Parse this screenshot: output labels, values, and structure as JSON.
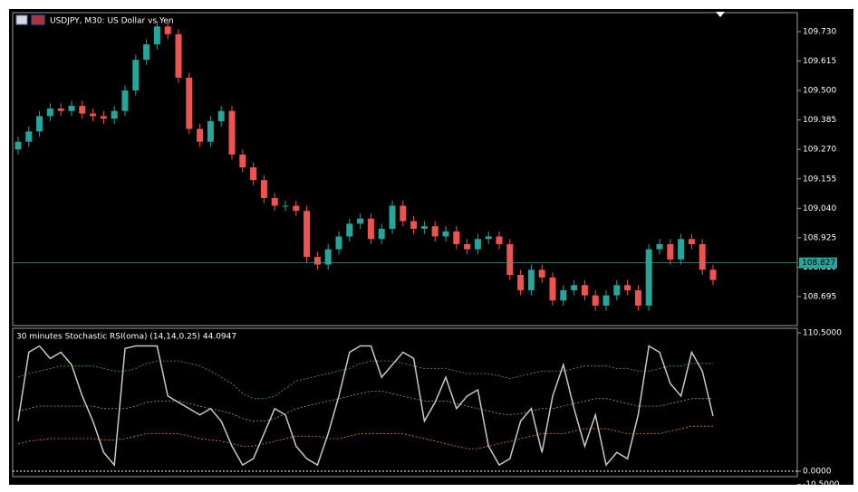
{
  "chart_data": [
    {
      "type": "candlestick",
      "title": "USDJPY, M30:  US Dollar vs Yen",
      "open": [
        109.27,
        109.3,
        109.34,
        109.4,
        109.43,
        109.42,
        109.44,
        109.41,
        109.4,
        109.39,
        109.42,
        109.5,
        109.62,
        109.68,
        109.75,
        109.72,
        109.55,
        109.35,
        109.3,
        109.38,
        109.42,
        109.25,
        109.2,
        109.15,
        109.08,
        109.05,
        109.05,
        109.03,
        108.85,
        108.82,
        108.88,
        108.93,
        108.98,
        109.0,
        108.92,
        108.96,
        109.05,
        108.99,
        108.96,
        108.97,
        108.93,
        108.95,
        108.9,
        108.88,
        108.92,
        108.93,
        108.9,
        108.78,
        108.72,
        108.8,
        108.77,
        108.68,
        108.72,
        108.74,
        108.7,
        108.66,
        108.7,
        108.74,
        108.72,
        108.66,
        108.88,
        108.9,
        108.84,
        108.92,
        108.9,
        108.8
      ],
      "high": [
        109.32,
        109.36,
        109.42,
        109.45,
        109.45,
        109.46,
        109.46,
        109.43,
        109.42,
        109.44,
        109.52,
        109.64,
        109.7,
        109.77,
        109.77,
        109.74,
        109.57,
        109.37,
        109.4,
        109.44,
        109.44,
        109.27,
        109.22,
        109.17,
        109.1,
        109.07,
        109.07,
        109.05,
        108.87,
        108.9,
        108.95,
        109.0,
        109.02,
        109.02,
        108.98,
        109.07,
        109.07,
        109.01,
        108.99,
        108.99,
        108.97,
        108.97,
        108.92,
        108.94,
        108.95,
        108.95,
        108.92,
        108.8,
        108.82,
        108.82,
        108.79,
        108.74,
        108.76,
        108.76,
        108.72,
        108.72,
        108.76,
        108.76,
        108.74,
        108.9,
        108.92,
        108.92,
        108.94,
        108.94,
        108.92,
        108.82
      ],
      "low": [
        109.25,
        109.28,
        109.32,
        109.38,
        109.4,
        109.4,
        109.39,
        109.38,
        109.37,
        109.37,
        109.4,
        109.48,
        109.6,
        109.66,
        109.7,
        109.53,
        109.33,
        109.28,
        109.28,
        109.36,
        109.23,
        109.18,
        109.13,
        109.06,
        109.03,
        109.03,
        109.01,
        108.83,
        108.8,
        108.8,
        108.86,
        108.91,
        108.96,
        108.9,
        108.9,
        108.94,
        108.97,
        108.94,
        108.94,
        108.91,
        108.91,
        108.88,
        108.86,
        108.86,
        108.9,
        108.88,
        108.76,
        108.7,
        108.7,
        108.75,
        108.66,
        108.66,
        108.7,
        108.68,
        108.64,
        108.64,
        108.68,
        108.7,
        108.64,
        108.64,
        108.86,
        108.82,
        108.82,
        108.88,
        108.78,
        108.74
      ],
      "close": [
        109.3,
        109.34,
        109.4,
        109.43,
        109.42,
        109.44,
        109.41,
        109.4,
        109.39,
        109.42,
        109.5,
        109.62,
        109.68,
        109.75,
        109.72,
        109.55,
        109.35,
        109.3,
        109.38,
        109.42,
        109.25,
        109.2,
        109.15,
        109.08,
        109.05,
        109.05,
        109.03,
        108.85,
        108.82,
        108.88,
        108.93,
        108.98,
        109.0,
        108.92,
        108.96,
        109.05,
        108.99,
        108.96,
        108.97,
        108.93,
        108.95,
        108.9,
        108.88,
        108.92,
        108.93,
        108.9,
        108.78,
        108.72,
        108.8,
        108.77,
        108.68,
        108.72,
        108.74,
        108.7,
        108.66,
        108.7,
        108.74,
        108.72,
        108.66,
        108.88,
        108.9,
        108.84,
        108.92,
        108.9,
        108.8,
        108.76
      ],
      "up_color": "#26a69a",
      "down_color": "#ef5350",
      "last_price": 108.827,
      "last_price_color": "#26a69a",
      "ylim": [
        108.582,
        109.804
      ],
      "yticks": [
        {
          "value": 109.73,
          "label": "109.730"
        },
        {
          "value": 109.615,
          "label": "109.615"
        },
        {
          "value": 109.5,
          "label": "109.500"
        },
        {
          "value": 109.385,
          "label": "109.385"
        },
        {
          "value": 109.27,
          "label": "109.270"
        },
        {
          "value": 109.155,
          "label": "109.155"
        },
        {
          "value": 109.04,
          "label": "109.040"
        },
        {
          "value": 108.925,
          "label": "108.925"
        },
        {
          "value": 108.81,
          "label": "108.810"
        },
        {
          "value": 108.695,
          "label": "108.695"
        }
      ]
    },
    {
      "type": "line",
      "title": "30 minutes Stochastic RSI(oma) (14,14,0.25) 44.0947",
      "values": [
        40,
        95,
        100,
        90,
        95,
        85,
        60,
        40,
        15,
        5,
        98,
        100,
        100,
        100,
        60,
        55,
        50,
        45,
        50,
        40,
        20,
        5,
        10,
        30,
        50,
        45,
        20,
        10,
        5,
        30,
        60,
        95,
        100,
        100,
        75,
        85,
        95,
        90,
        40,
        55,
        75,
        50,
        60,
        65,
        20,
        5,
        10,
        40,
        50,
        15,
        60,
        85,
        50,
        20,
        45,
        5,
        15,
        10,
        45,
        100,
        95,
        70,
        60,
        95,
        80,
        44.0947
      ],
      "color": "#c8c8c8",
      "levels": [
        {
          "color": "#3fae3f",
          "values": [
            75,
            78,
            80,
            82,
            84,
            84,
            84,
            84,
            82,
            80,
            80,
            82,
            86,
            88,
            88,
            88,
            86,
            84,
            80,
            75,
            70,
            62,
            58,
            58,
            60,
            66,
            72,
            74,
            76,
            78,
            80,
            82,
            86,
            88,
            88,
            88,
            86,
            84,
            82,
            82,
            82,
            80,
            78,
            78,
            78,
            76,
            74,
            76,
            78,
            80,
            80,
            80,
            82,
            84,
            84,
            84,
            82,
            82,
            80,
            80,
            82,
            84,
            84,
            86,
            86,
            86
          ]
        },
        {
          "color": "#9a9a9a",
          "values": [
            48,
            50,
            52,
            52,
            52,
            52,
            52,
            52,
            50,
            50,
            50,
            52,
            55,
            56,
            56,
            56,
            54,
            52,
            50,
            48,
            46,
            42,
            40,
            40,
            42,
            46,
            50,
            52,
            54,
            56,
            58,
            60,
            62,
            64,
            64,
            62,
            60,
            58,
            56,
            56,
            56,
            54,
            52,
            50,
            48,
            46,
            45,
            46,
            48,
            50,
            50,
            52,
            54,
            56,
            58,
            58,
            56,
            54,
            52,
            52,
            52,
            54,
            56,
            58,
            58,
            58
          ]
        },
        {
          "color": "#e08a1e",
          "values": [
            22,
            24,
            25,
            26,
            26,
            26,
            26,
            26,
            25,
            25,
            26,
            28,
            30,
            30,
            30,
            30,
            28,
            26,
            25,
            24,
            22,
            20,
            20,
            22,
            24,
            26,
            28,
            28,
            28,
            26,
            26,
            28,
            30,
            30,
            30,
            30,
            30,
            28,
            26,
            24,
            22,
            20,
            18,
            18,
            20,
            22,
            24,
            26,
            28,
            30,
            30,
            30,
            32,
            34,
            34,
            34,
            32,
            30,
            30,
            30,
            30,
            32,
            34,
            36,
            36,
            36
          ]
        }
      ],
      "ylim": [
        -4.3,
        114.1
      ],
      "yticks": [
        {
          "value": 110.5,
          "label": "110.5000"
        },
        {
          "value": 0,
          "label": "0.0000"
        },
        {
          "value": -10.5,
          "label": "-10.5000"
        }
      ]
    }
  ]
}
